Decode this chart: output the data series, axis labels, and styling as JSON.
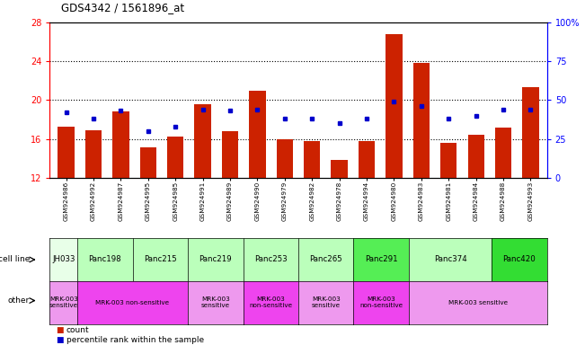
{
  "title": "GDS4342 / 1561896_at",
  "samples": [
    "GSM924986",
    "GSM924992",
    "GSM924987",
    "GSM924995",
    "GSM924985",
    "GSM924991",
    "GSM924989",
    "GSM924990",
    "GSM924979",
    "GSM924982",
    "GSM924978",
    "GSM924994",
    "GSM924980",
    "GSM924983",
    "GSM924981",
    "GSM924984",
    "GSM924988",
    "GSM924993"
  ],
  "count_values": [
    17.3,
    16.9,
    18.8,
    15.1,
    16.2,
    19.6,
    16.8,
    21.0,
    16.0,
    15.8,
    13.8,
    15.8,
    26.8,
    23.8,
    15.6,
    16.4,
    17.2,
    21.3
  ],
  "percentile_values": [
    42,
    38,
    43,
    30,
    33,
    44,
    43,
    44,
    38,
    38,
    35,
    38,
    49,
    46,
    38,
    40,
    44,
    44
  ],
  "y_min": 12,
  "y_max": 28,
  "y_ticks": [
    12,
    16,
    20,
    24,
    28
  ],
  "y_right_ticks": [
    0,
    25,
    50,
    75,
    100
  ],
  "bar_color": "#CC2200",
  "percentile_color": "#0000CC",
  "cell_lines": [
    {
      "name": "JH033",
      "start": 0,
      "end": 1,
      "color": "#e8ffe8"
    },
    {
      "name": "Panc198",
      "start": 1,
      "end": 3,
      "color": "#bbffbb"
    },
    {
      "name": "Panc215",
      "start": 3,
      "end": 5,
      "color": "#bbffbb"
    },
    {
      "name": "Panc219",
      "start": 5,
      "end": 7,
      "color": "#bbffbb"
    },
    {
      "name": "Panc253",
      "start": 7,
      "end": 9,
      "color": "#bbffbb"
    },
    {
      "name": "Panc265",
      "start": 9,
      "end": 11,
      "color": "#bbffbb"
    },
    {
      "name": "Panc291",
      "start": 11,
      "end": 13,
      "color": "#55ee55"
    },
    {
      "name": "Panc374",
      "start": 13,
      "end": 16,
      "color": "#bbffbb"
    },
    {
      "name": "Panc420",
      "start": 16,
      "end": 18,
      "color": "#33dd33"
    }
  ],
  "other_labels": [
    {
      "text": "MRK-003\nsensitive",
      "start": 0,
      "end": 1,
      "color": "#ee99ee"
    },
    {
      "text": "MRK-003 non-sensitive",
      "start": 1,
      "end": 5,
      "color": "#ee44ee"
    },
    {
      "text": "MRK-003\nsensitive",
      "start": 5,
      "end": 7,
      "color": "#ee99ee"
    },
    {
      "text": "MRK-003\nnon-sensitive",
      "start": 7,
      "end": 9,
      "color": "#ee44ee"
    },
    {
      "text": "MRK-003\nsensitive",
      "start": 9,
      "end": 11,
      "color": "#ee99ee"
    },
    {
      "text": "MRK-003\nnon-sensitive",
      "start": 11,
      "end": 13,
      "color": "#ee44ee"
    },
    {
      "text": "MRK-003 sensitive",
      "start": 13,
      "end": 18,
      "color": "#ee99ee"
    }
  ],
  "legend_count_color": "#CC2200",
  "legend_pct_color": "#0000CC",
  "bg_color": "#ffffff"
}
